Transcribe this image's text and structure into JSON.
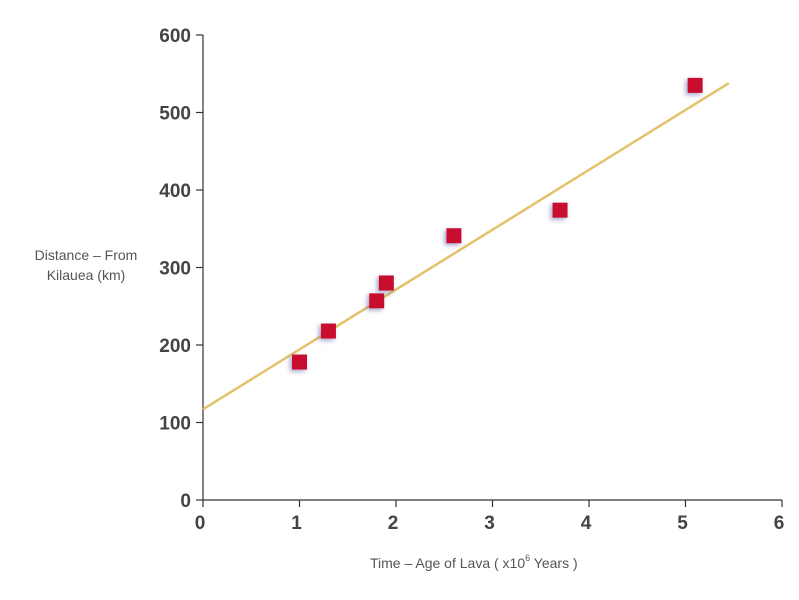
{
  "chart_data": {
    "type": "scatter",
    "ylabel_line1": "Distance – From",
    "ylabel_line2": "Kilauea (km)",
    "xlabel_prefix": "Time – Age of Lava ( x10",
    "xlabel_sup": "6",
    "xlabel_suffix": " Years )",
    "xlim": [
      0,
      6
    ],
    "ylim": [
      0,
      600
    ],
    "x_ticks": [
      "0",
      "1",
      "2",
      "3",
      "4",
      "5",
      "6"
    ],
    "y_ticks": [
      "0",
      "100",
      "200",
      "300",
      "400",
      "500",
      "600"
    ],
    "grid": false,
    "points": [
      {
        "x": 1.0,
        "y": 178
      },
      {
        "x": 1.3,
        "y": 218
      },
      {
        "x": 1.8,
        "y": 257
      },
      {
        "x": 1.9,
        "y": 280
      },
      {
        "x": 2.6,
        "y": 341
      },
      {
        "x": 3.7,
        "y": 374
      },
      {
        "x": 5.1,
        "y": 535
      }
    ],
    "trendline": {
      "x": [
        0,
        5.45
      ],
      "y": [
        117,
        538
      ]
    },
    "colors": {
      "marker": "#c8102e",
      "trendline": "#e3c26a",
      "axis": "#333333"
    }
  }
}
